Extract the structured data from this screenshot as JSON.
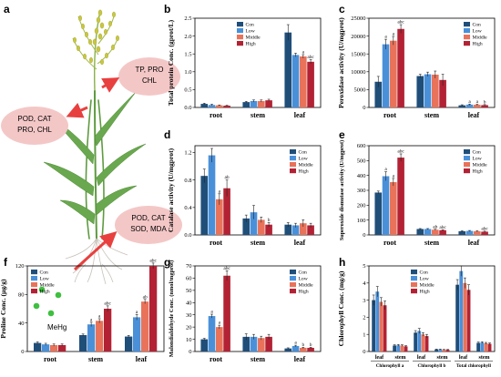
{
  "panel_a": {
    "letter": "a",
    "bubbles": [
      {
        "id": "upper-left",
        "lines": [
          "POD, CAT",
          "PRO, CHL"
        ]
      },
      {
        "id": "upper-right",
        "lines": [
          "TP, PRO",
          "CHL"
        ]
      },
      {
        "id": "lower-right",
        "lines": [
          "POD, CAT",
          "SOD, MDA"
        ]
      }
    ],
    "mehg_label": "MeHg",
    "colors": {
      "bubble": "#f4c7c7",
      "arrow": "#e8403f",
      "plant": "#6aa84f",
      "dots": "#3fbf3f"
    }
  },
  "legend": {
    "entries": [
      "Con",
      "Low",
      "Middle",
      "High"
    ],
    "colors": [
      "#1f4e79",
      "#4a90d9",
      "#e8735a",
      "#b22234"
    ]
  },
  "chart_data": [
    {
      "panel": "b",
      "type": "bar",
      "ylabel": "Total protein Conc. (gprot/L)",
      "categories": [
        "root",
        "stem",
        "leaf"
      ],
      "ylim": [
        0,
        2.5
      ],
      "yticks": [
        0.0,
        0.5,
        1.0,
        1.5,
        2.0,
        2.5
      ],
      "ytick_decimals": 1,
      "legend_position": "top-center",
      "series": [
        {
          "name": "Con",
          "values": [
            0.1,
            0.15,
            2.1
          ],
          "errors": [
            0.02,
            0.02,
            0.22
          ]
        },
        {
          "name": "Low",
          "values": [
            0.07,
            0.18,
            1.47
          ],
          "errors": [
            0.02,
            0.03,
            0.05
          ]
        },
        {
          "name": "Middle",
          "values": [
            0.06,
            0.18,
            1.43
          ],
          "errors": [
            0.01,
            0.03,
            0.05
          ]
        },
        {
          "name": "High",
          "values": [
            0.05,
            0.2,
            1.28
          ],
          "errors": [
            0.01,
            0.03,
            0.06
          ]
        }
      ],
      "significance": [
        {
          "category": 2,
          "series": 2,
          "label": "a"
        },
        {
          "category": 2,
          "series": 3,
          "label": "abc"
        }
      ]
    },
    {
      "panel": "c",
      "type": "bar",
      "ylabel": "Peroxidase activity (U/mgprot)",
      "categories": [
        "root",
        "stem",
        "leaf"
      ],
      "ylim": [
        0,
        25000
      ],
      "yticks": [
        0,
        5000,
        10000,
        15000,
        20000,
        25000
      ],
      "ytick_decimals": 0,
      "legend_position": "top-right",
      "series": [
        {
          "name": "Con",
          "values": [
            7200,
            8800,
            600
          ],
          "errors": [
            1500,
            500,
            150
          ]
        },
        {
          "name": "Low",
          "values": [
            17700,
            9300,
            800
          ],
          "errors": [
            1400,
            600,
            150
          ]
        },
        {
          "name": "Middle",
          "values": [
            18700,
            9200,
            750
          ],
          "errors": [
            1200,
            1000,
            150
          ]
        },
        {
          "name": "High",
          "values": [
            22000,
            7700,
            650
          ],
          "errors": [
            1200,
            1600,
            150
          ]
        }
      ],
      "significance": [
        {
          "category": 0,
          "series": 1,
          "label": "a"
        },
        {
          "category": 0,
          "series": 2,
          "label": "a"
        },
        {
          "category": 0,
          "series": 3,
          "label": "abc"
        },
        {
          "category": 2,
          "series": 1,
          "label": "a"
        },
        {
          "category": 2,
          "series": 2,
          "label": "a"
        },
        {
          "category": 2,
          "series": 3,
          "label": "b"
        }
      ]
    },
    {
      "panel": "d",
      "type": "bar",
      "ylabel": "Catalase activity (U/mgprot)",
      "categories": [
        "root",
        "stem",
        "leaf"
      ],
      "ylim": [
        0,
        1.3
      ],
      "yticks": [
        0.0,
        0.4,
        0.8,
        1.2
      ],
      "ytick_decimals": 1,
      "legend_position": "top-right",
      "series": [
        {
          "name": "Con",
          "values": [
            0.86,
            0.24,
            0.15
          ],
          "errors": [
            0.1,
            0.05,
            0.03
          ]
        },
        {
          "name": "Low",
          "values": [
            1.16,
            0.33,
            0.14
          ],
          "errors": [
            0.1,
            0.1,
            0.03
          ]
        },
        {
          "name": "Middle",
          "values": [
            0.52,
            0.22,
            0.17
          ],
          "errors": [
            0.08,
            0.04,
            0.05
          ]
        },
        {
          "name": "High",
          "values": [
            0.68,
            0.15,
            0.14
          ],
          "errors": [
            0.12,
            0.03,
            0.03
          ]
        }
      ],
      "significance": [
        {
          "category": 0,
          "series": 2,
          "label": "a"
        },
        {
          "category": 0,
          "series": 3,
          "label": "ab"
        },
        {
          "category": 1,
          "series": 3,
          "label": "b"
        }
      ]
    },
    {
      "panel": "e",
      "type": "bar",
      "ylabel": "Superoxide dismutase activity (U/mgprot)",
      "categories": [
        "root",
        "stem",
        "leaf"
      ],
      "ylim": [
        0,
        600
      ],
      "yticks": [
        0,
        100,
        200,
        300,
        400,
        500,
        600
      ],
      "ytick_decimals": 0,
      "legend_position": "top-right",
      "series": [
        {
          "name": "Con",
          "values": [
            285,
            40,
            25
          ],
          "errors": [
            10,
            3,
            3
          ]
        },
        {
          "name": "Low",
          "values": [
            395,
            40,
            27
          ],
          "errors": [
            30,
            3,
            3
          ]
        },
        {
          "name": "Middle",
          "values": [
            355,
            35,
            25
          ],
          "errors": [
            25,
            3,
            3
          ]
        },
        {
          "name": "High",
          "values": [
            520,
            32,
            22
          ],
          "errors": [
            25,
            3,
            3
          ]
        }
      ],
      "significance": [
        {
          "category": 0,
          "series": 1,
          "label": "a"
        },
        {
          "category": 0,
          "series": 2,
          "label": "a"
        },
        {
          "category": 0,
          "series": 3,
          "label": "abc"
        },
        {
          "category": 1,
          "series": 2,
          "label": "ab"
        },
        {
          "category": 1,
          "series": 3,
          "label": "abc"
        },
        {
          "category": 2,
          "series": 3,
          "label": "abc"
        }
      ]
    },
    {
      "panel": "f",
      "type": "bar",
      "ylabel": "Proline Conc. (μg/g)",
      "categories": [
        "root",
        "stem",
        "leaf"
      ],
      "ylim": [
        0,
        120
      ],
      "yticks": [
        0,
        40,
        80,
        120
      ],
      "ytick_decimals": 0,
      "legend_position": "top-left",
      "series": [
        {
          "name": "Con",
          "values": [
            12,
            23,
            21
          ],
          "errors": [
            1.5,
            1.5,
            1.5
          ]
        },
        {
          "name": "Low",
          "values": [
            10,
            38,
            48
          ],
          "errors": [
            1.5,
            3,
            4
          ]
        },
        {
          "name": "Middle",
          "values": [
            9,
            43,
            70
          ],
          "errors": [
            1.5,
            3,
            3
          ]
        },
        {
          "name": "High",
          "values": [
            9,
            60,
            120
          ],
          "errors": [
            1.5,
            4,
            4
          ]
        }
      ],
      "significance": [
        {
          "category": 1,
          "series": 1,
          "label": "a"
        },
        {
          "category": 1,
          "series": 2,
          "label": "a"
        },
        {
          "category": 1,
          "series": 3,
          "label": "abc"
        },
        {
          "category": 2,
          "series": 1,
          "label": "a"
        },
        {
          "category": 2,
          "series": 2,
          "label": "ab"
        },
        {
          "category": 2,
          "series": 3,
          "label": "abc"
        }
      ]
    },
    {
      "panel": "g",
      "type": "bar",
      "ylabel": "Malondialdehyde Conc. (nmol/mgprot)",
      "categories": [
        "root",
        "stem",
        "leaf"
      ],
      "ylim": [
        0,
        70
      ],
      "yticks": [
        0,
        10,
        20,
        30,
        40,
        50,
        60,
        70
      ],
      "ytick_decimals": 0,
      "legend_position": "top-right",
      "series": [
        {
          "name": "Con",
          "values": [
            10,
            12,
            2.5
          ],
          "errors": [
            0.8,
            2.5,
            0.5
          ]
        },
        {
          "name": "Low",
          "values": [
            29,
            12,
            4.5
          ],
          "errors": [
            1.5,
            2,
            0.6
          ]
        },
        {
          "name": "Middle",
          "values": [
            20,
            11,
            3
          ],
          "errors": [
            1.5,
            1.5,
            0.5
          ]
        },
        {
          "name": "High",
          "values": [
            62,
            12,
            3
          ],
          "errors": [
            4,
            2,
            0.5
          ]
        }
      ],
      "significance": [
        {
          "category": 0,
          "series": 1,
          "label": "a"
        },
        {
          "category": 0,
          "series": 2,
          "label": "a"
        },
        {
          "category": 0,
          "series": 3,
          "label": "abc"
        },
        {
          "category": 2,
          "series": 1,
          "label": "a"
        },
        {
          "category": 2,
          "series": 2,
          "label": "b"
        },
        {
          "category": 2,
          "series": 3,
          "label": "b"
        }
      ]
    },
    {
      "panel": "h",
      "type": "bar",
      "ylabel": "Chlorophyll Conc. (mg/g)",
      "categories": [
        "leaf",
        "stem",
        "leaf",
        "stem",
        "leaf",
        "stem"
      ],
      "groups": [
        "Chlorophyll a",
        "Chlorophyll b",
        "Total chlorophyll"
      ],
      "ylim": [
        0,
        5
      ],
      "yticks": [
        0,
        1,
        2,
        3,
        4,
        5
      ],
      "ytick_decimals": 0,
      "legend_position": "top-center",
      "series": [
        {
          "name": "Con",
          "values": [
            3.0,
            0.35,
            1.1,
            0.12,
            3.9,
            0.5
          ],
          "errors": [
            0.3,
            0.04,
            0.12,
            0.02,
            0.3,
            0.05
          ]
        },
        {
          "name": "Low",
          "values": [
            3.5,
            0.36,
            1.2,
            0.12,
            4.7,
            0.52
          ],
          "errors": [
            0.3,
            0.05,
            0.15,
            0.02,
            0.3,
            0.05
          ]
        },
        {
          "name": "Middle",
          "values": [
            2.9,
            0.35,
            1.0,
            0.1,
            4.0,
            0.48
          ],
          "errors": [
            0.25,
            0.04,
            0.1,
            0.02,
            0.3,
            0.05
          ]
        },
        {
          "name": "High",
          "values": [
            2.7,
            0.3,
            0.9,
            0.1,
            3.6,
            0.45
          ],
          "errors": [
            0.25,
            0.04,
            0.1,
            0.02,
            0.3,
            0.05
          ]
        }
      ],
      "significance": []
    }
  ]
}
